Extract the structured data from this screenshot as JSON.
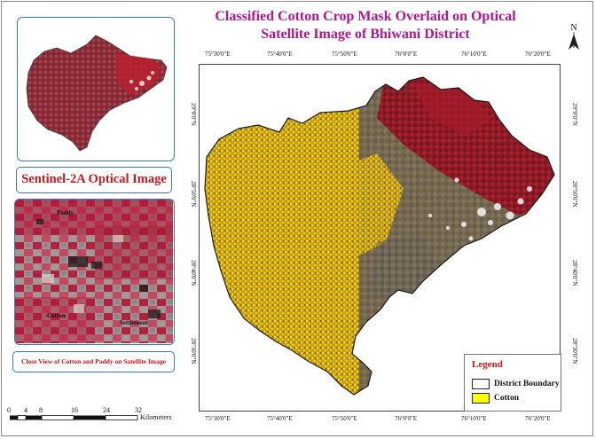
{
  "title": {
    "line1": "Classified Cotton Crop Mask Overlaid on Optical",
    "line2": "Satellite Image of Bhiwani District"
  },
  "inset_labels": {
    "sentinel": "Sentinel-2A Optical Image",
    "close_view": "Close View of Cotton and Paddy on Satellite Image",
    "paddy": "Paddy",
    "cotton": "Cotton",
    "settlement": "Settlement"
  },
  "coordinates": {
    "top": [
      "75°30'0\"E",
      "75°40'0\"E",
      "75°50'0\"E",
      "76°0'0\"E",
      "76°10'0\"E",
      "76°20'0\"E"
    ],
    "bottom": [
      "75°30'0\"E",
      "75°40'0\"E",
      "75°50'0\"E",
      "76°0'0\"E",
      "76°10'0\"E",
      "76°20'0\"E"
    ],
    "left": [
      "29°0'0\"N",
      "28°50'0\"N",
      "28°40'0\"N",
      "28°30'0\"N"
    ],
    "right": [
      "29°0'0\"N",
      "28°50'0\"N",
      "28°40'0\"N",
      "28°30'0\"N"
    ]
  },
  "legend": {
    "title": "Legend",
    "items": [
      {
        "label": "District Boundary",
        "fill": "#ffffff"
      },
      {
        "label": "Cotton",
        "fill": "#ffff00"
      }
    ]
  },
  "scale_bar": {
    "ticks": [
      "0",
      "4",
      "8",
      "16",
      "24",
      "32"
    ],
    "unit": "Kilometers"
  },
  "north_arrow": {
    "label": "N"
  },
  "colors": {
    "title": "#b0168f",
    "label_red": "#c3181d",
    "panel_border": "#3a78c0",
    "cotton": "#ffff00",
    "vegetation": "#9a1522",
    "soil": "#6a625a"
  }
}
